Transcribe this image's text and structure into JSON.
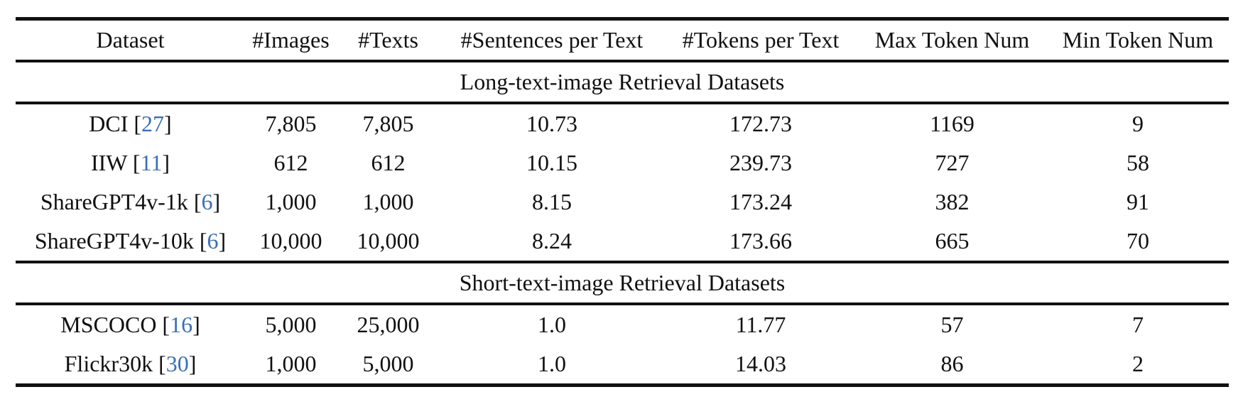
{
  "table": {
    "headers": [
      "Dataset",
      "#Images",
      "#Texts",
      "#Sentences per Text",
      "#Tokens per Text",
      "Max Token Num",
      "Min Token Num"
    ],
    "sections": [
      {
        "title": "Long-text-image Retrieval Datasets",
        "rows": [
          {
            "name": "DCI",
            "cite": "27",
            "images": "7,805",
            "texts": "7,805",
            "sentences": "10.73",
            "tokens": "172.73",
            "max": "1169",
            "min": "9"
          },
          {
            "name": "IIW",
            "cite": "11",
            "images": "612",
            "texts": "612",
            "sentences": "10.15",
            "tokens": "239.73",
            "max": "727",
            "min": "58"
          },
          {
            "name": "ShareGPT4v-1k",
            "cite": "6",
            "images": "1,000",
            "texts": "1,000",
            "sentences": "8.15",
            "tokens": "173.24",
            "max": "382",
            "min": "91"
          },
          {
            "name": "ShareGPT4v-10k",
            "cite": "6",
            "images": "10,000",
            "texts": "10,000",
            "sentences": "8.24",
            "tokens": "173.66",
            "max": "665",
            "min": "70"
          }
        ]
      },
      {
        "title": "Short-text-image Retrieval Datasets",
        "rows": [
          {
            "name": "MSCOCO",
            "cite": "16",
            "images": "5,000",
            "texts": "25,000",
            "sentences": "1.0",
            "tokens": "11.77",
            "max": "57",
            "min": "7"
          },
          {
            "name": "Flickr30k",
            "cite": "30",
            "images": "1,000",
            "texts": "5,000",
            "sentences": "1.0",
            "tokens": "14.03",
            "max": "86",
            "min": "2"
          }
        ]
      }
    ]
  }
}
